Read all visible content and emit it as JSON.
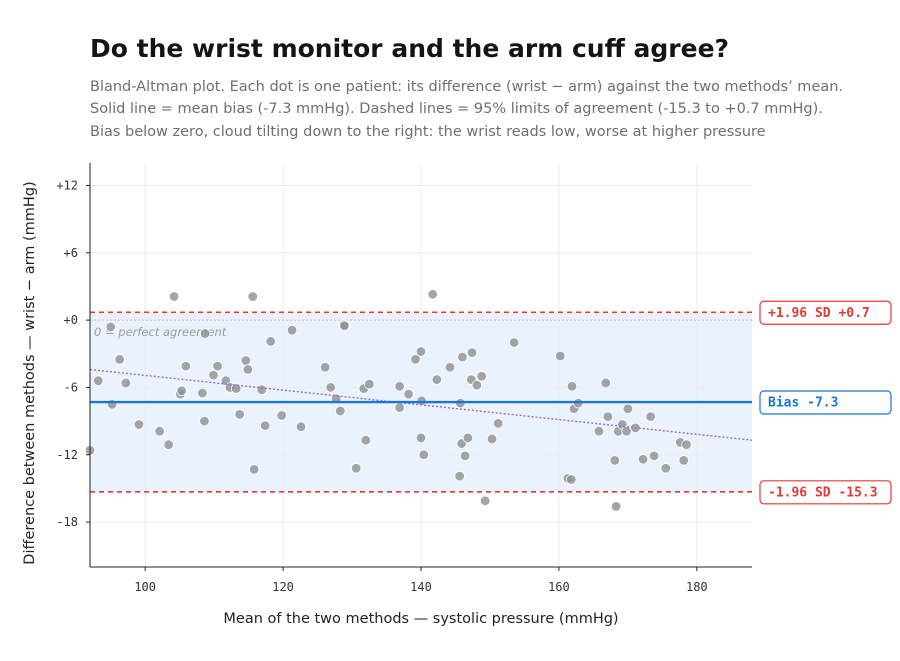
{
  "title": "Do the wrist monitor and the arm cuff agree?",
  "subtitle_lines": [
    "Bland-Altman plot. Each dot is one patient: its difference (wrist − arm) against the two methods’ mean.",
    "Solid line = mean bias (-7.3 mmHg). Dashed lines = 95% limits of agreement (-15.3 to +0.7 mmHg).",
    "Bias below zero, cloud tilting down to the right: the wrist reads low, worse at higher pressure"
  ],
  "colors": {
    "points": "#8e8e8e",
    "bias": "#1976d2",
    "limits": "#e53935",
    "band": "#eaf3fd",
    "trend": "#a065d0"
  },
  "chart_data": {
    "type": "scatter",
    "xlabel": "Mean of the two methods — systolic pressure (mmHg)",
    "ylabel": "Difference between methods — wrist − arm (mmHg)",
    "xlim": [
      92,
      188
    ],
    "ylim": [
      -22,
      14
    ],
    "x_ticks": [
      {
        "value": 100,
        "label": "100"
      },
      {
        "value": 120,
        "label": "120"
      },
      {
        "value": 140,
        "label": "140"
      },
      {
        "value": 160,
        "label": "160"
      },
      {
        "value": 180,
        "label": "180"
      }
    ],
    "y_ticks": [
      {
        "value": 12,
        "label": "+12"
      },
      {
        "value": 6,
        "label": "+6"
      },
      {
        "value": 0,
        "label": "+0"
      },
      {
        "value": -6,
        "label": "-6"
      },
      {
        "value": -12,
        "label": "-12"
      },
      {
        "value": -18,
        "label": "-18"
      }
    ],
    "grid": true,
    "bias": -7.3,
    "bias_label": "Bias -7.3",
    "upper_loa": 0.7,
    "upper_label": "+1.96 SD +0.7",
    "lower_loa": -15.3,
    "lower_label": "-1.96 SD -15.3",
    "zero_line_label": "0 = perfect agreement",
    "trend": [
      [
        92,
        -4.4
      ],
      [
        188,
        -10.7
      ]
    ],
    "points": [
      [
        93.2,
        -5.4
      ],
      [
        95.0,
        -0.6
      ],
      [
        95.2,
        -7.5
      ],
      [
        96.3,
        -3.5
      ],
      [
        97.2,
        -5.6
      ],
      [
        99.1,
        -9.3
      ],
      [
        102.1,
        -9.9
      ],
      [
        103.4,
        -11.1
      ],
      [
        104.2,
        2.1
      ],
      [
        105.1,
        -6.6
      ],
      [
        105.3,
        -6.3
      ],
      [
        105.9,
        -4.1
      ],
      [
        108.3,
        -6.5
      ],
      [
        108.6,
        -9.0
      ],
      [
        108.7,
        -1.2
      ],
      [
        109.9,
        -4.9
      ],
      [
        110.5,
        -4.1
      ],
      [
        111.7,
        -5.4
      ],
      [
        112.3,
        -6.0
      ],
      [
        113.2,
        -6.1
      ],
      [
        113.7,
        -8.4
      ],
      [
        114.6,
        -3.6
      ],
      [
        114.9,
        -4.4
      ],
      [
        115.6,
        2.1
      ],
      [
        115.8,
        -13.3
      ],
      [
        116.9,
        -6.2
      ],
      [
        117.4,
        -9.4
      ],
      [
        118.2,
        -1.9
      ],
      [
        119.8,
        -8.5
      ],
      [
        121.3,
        -0.9
      ],
      [
        122.6,
        -9.5
      ],
      [
        126.1,
        -4.2
      ],
      [
        126.9,
        -6.0
      ],
      [
        127.7,
        -7.0
      ],
      [
        128.3,
        -8.1
      ],
      [
        128.8,
        -0.4
      ],
      [
        128.9,
        -0.5
      ],
      [
        130.6,
        -13.2
      ],
      [
        131.7,
        -6.1
      ],
      [
        132.0,
        -10.7
      ],
      [
        132.5,
        -5.7
      ],
      [
        136.9,
        -7.8
      ],
      [
        136.9,
        -5.9
      ],
      [
        138.2,
        -6.6
      ],
      [
        139.2,
        -3.5
      ],
      [
        140.0,
        -10.5
      ],
      [
        140.0,
        -2.8
      ],
      [
        140.1,
        -7.2
      ],
      [
        140.4,
        -12.0
      ],
      [
        141.7,
        2.3
      ],
      [
        142.3,
        -5.3
      ],
      [
        144.2,
        -4.2
      ],
      [
        145.6,
        -13.9
      ],
      [
        145.7,
        -7.4
      ],
      [
        145.9,
        -11.0
      ],
      [
        146.0,
        -3.3
      ],
      [
        146.4,
        -12.1
      ],
      [
        146.8,
        -10.5
      ],
      [
        147.3,
        -5.3
      ],
      [
        147.4,
        -2.9
      ],
      [
        148.1,
        -5.8
      ],
      [
        148.8,
        -5.0
      ],
      [
        149.3,
        -16.1
      ],
      [
        150.3,
        -10.6
      ],
      [
        151.2,
        -9.2
      ],
      [
        153.5,
        -2.0
      ],
      [
        160.2,
        -3.2
      ],
      [
        161.3,
        -14.1
      ],
      [
        161.9,
        -5.9
      ],
      [
        161.8,
        -14.2
      ],
      [
        162.2,
        -7.9
      ],
      [
        162.8,
        -7.4
      ],
      [
        165.8,
        -9.9
      ],
      [
        166.8,
        -5.6
      ],
      [
        167.1,
        -8.6
      ],
      [
        168.1,
        -12.5
      ],
      [
        168.3,
        -16.6
      ],
      [
        168.6,
        -9.9
      ],
      [
        169.2,
        -9.3
      ],
      [
        169.8,
        -9.9
      ],
      [
        170.0,
        -7.9
      ],
      [
        171.1,
        -9.6
      ],
      [
        172.2,
        -12.4
      ],
      [
        173.3,
        -8.6
      ],
      [
        173.8,
        -12.1
      ],
      [
        175.5,
        -13.2
      ],
      [
        177.6,
        -10.9
      ],
      [
        178.1,
        -12.5
      ],
      [
        178.5,
        -11.1
      ],
      [
        92.0,
        -11.6
      ]
    ]
  }
}
